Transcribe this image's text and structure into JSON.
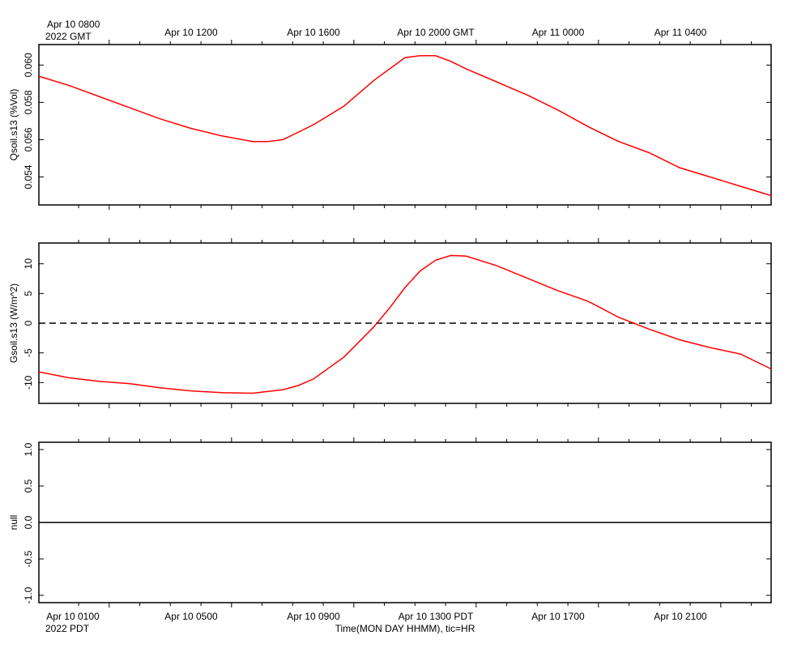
{
  "colors": {
    "series": "#ff0000",
    "axis": "#000000"
  },
  "top_axis": {
    "first_label_line1": "Apr 10 0800",
    "first_label_line2": "2022 GMT",
    "labels": [
      "Apr 10 1200",
      "Apr 10 1600",
      "Apr 10 2000 GMT",
      "Apr 11 0000",
      "Apr 11 0400"
    ]
  },
  "bottom_axis": {
    "labels": [
      "Apr 10 0100",
      "Apr 10 0500",
      "Apr 10 0900",
      "Apr 10 1300 PDT",
      "Apr 10 1700",
      "Apr 10 2100"
    ],
    "year_tz": "2022 PDT",
    "title": "Time(MON DAY HHMM), tic=HR"
  },
  "chart_data": [
    {
      "type": "line",
      "ylabel": "Qsoil.s13 (%Vol)",
      "ylim": [
        0.0525,
        0.0611
      ],
      "yticks": [
        "0.054",
        "0.056",
        "0.058",
        "0.060"
      ],
      "x_unit": "hours since Apr 10 0000 PDT",
      "xlim": [
        0,
        24
      ],
      "series": [
        {
          "color": "#ff0000",
          "x": [
            0,
            1,
            2,
            3,
            4,
            5,
            6,
            7,
            7.5,
            8,
            9,
            10,
            11,
            11.5,
            12,
            12.5,
            13,
            13.5,
            14,
            15,
            16,
            17,
            18,
            19,
            20,
            21,
            22,
            23,
            24
          ],
          "y": [
            0.0594,
            0.0589,
            0.0583,
            0.0577,
            0.0571,
            0.0566,
            0.0562,
            0.0559,
            0.0559,
            0.056,
            0.0568,
            0.0578,
            0.0592,
            0.0598,
            0.0604,
            0.0605,
            0.0605,
            0.0602,
            0.0598,
            0.0591,
            0.0584,
            0.0576,
            0.0567,
            0.0559,
            0.0553,
            0.0545,
            0.054,
            0.0535,
            0.053
          ]
        }
      ]
    },
    {
      "type": "line",
      "ylabel": "Gsoil.s13 (W/m^2)",
      "ylim": [
        -13.5,
        13.5
      ],
      "yticks": [
        "-10",
        "-5",
        "0",
        "5",
        "10"
      ],
      "reference_line": 0,
      "x_unit": "hours since Apr 10 0000 PDT",
      "xlim": [
        0,
        24
      ],
      "series": [
        {
          "color": "#ff0000",
          "x": [
            0,
            1,
            2,
            3,
            4,
            5,
            6,
            7,
            8,
            8.5,
            9,
            10,
            11,
            11.5,
            12,
            12.5,
            13,
            13.5,
            14,
            15,
            16,
            17,
            18,
            19,
            20,
            21,
            22,
            23,
            24
          ],
          "y": [
            -8.2,
            -9.2,
            -9.8,
            -10.2,
            -10.9,
            -11.4,
            -11.7,
            -11.8,
            -11.2,
            -10.5,
            -9.4,
            -5.7,
            -0.5,
            2.6,
            6.0,
            8.8,
            10.6,
            11.4,
            11.3,
            9.7,
            7.6,
            5.5,
            3.7,
            1.0,
            -1.0,
            -2.8,
            -4.1,
            -5.2,
            -7.7
          ]
        }
      ]
    },
    {
      "type": "line",
      "ylabel": "null",
      "ylim": [
        -1.1,
        1.1
      ],
      "yticks": [
        "-1.0",
        "-0.5",
        "0.0",
        "0.5",
        "1.0"
      ],
      "reference_line": 0,
      "series": []
    }
  ]
}
